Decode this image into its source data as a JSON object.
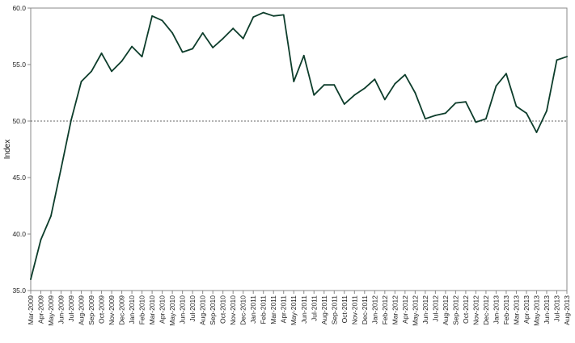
{
  "chart_data": {
    "type": "line",
    "title": "",
    "xlabel": "",
    "ylabel": "Index",
    "ylim": [
      35.0,
      60.0
    ],
    "yticks": [
      "35.0",
      "40.0",
      "45.0",
      "50.0",
      "55.0",
      "60.0"
    ],
    "reference_line": {
      "y": 50.0,
      "style": "dotted"
    },
    "grid": false,
    "legend": "none",
    "line_color": "#0d3d2b",
    "categories": [
      "Mar-2009",
      "Apr-2009",
      "May-2009",
      "Jun-2009",
      "Jul-2009",
      "Aug-2009",
      "Sep-2009",
      "Oct-2009",
      "Nov-2009",
      "Dec-2009",
      "Jan-2010",
      "Feb-2010",
      "Mar-2010",
      "Apr-2010",
      "May-2010",
      "Jun-2010",
      "Jul-2010",
      "Aug-2010",
      "Sep-2010",
      "Oct-2010",
      "Nov-2010",
      "Dec-2010",
      "Jan-2011",
      "Feb-2011",
      "Mar-2011",
      "Apr-2011",
      "May-2011",
      "Jun-2011",
      "Jul-2011",
      "Aug-2011",
      "Sep-2011",
      "Oct-2011",
      "Nov-2011",
      "Dec-2011",
      "Jan-2012",
      "Feb-2012",
      "Mar-2012",
      "Apr-2012",
      "May-2012",
      "Jun-2012",
      "Jul-2012",
      "Aug-2012",
      "Sep-2012",
      "Oct-2012",
      "Nov-2012",
      "Dec-2012",
      "Jan-2013",
      "Feb-2013",
      "Mar-2013",
      "Apr-2013",
      "May-2013",
      "Jun-2013",
      "Jul-2013",
      "Aug-2013"
    ],
    "series": [
      {
        "values": [
          36.0,
          39.5,
          41.6,
          45.8,
          50.1,
          53.5,
          54.4,
          56.0,
          54.4,
          55.3,
          56.6,
          55.7,
          59.3,
          58.9,
          57.8,
          56.1,
          56.4,
          57.8,
          56.5,
          57.3,
          58.2,
          57.3,
          59.2,
          59.6,
          59.3,
          59.4,
          53.5,
          55.8,
          52.3,
          53.2,
          53.2,
          51.5,
          52.3,
          52.9,
          53.7,
          51.9,
          53.3,
          54.1,
          52.5,
          50.2,
          50.5,
          50.7,
          51.6,
          51.7,
          49.9,
          50.2,
          53.1,
          54.2,
          51.3,
          50.7,
          49.0,
          50.9,
          55.4,
          55.7
        ]
      }
    ]
  }
}
